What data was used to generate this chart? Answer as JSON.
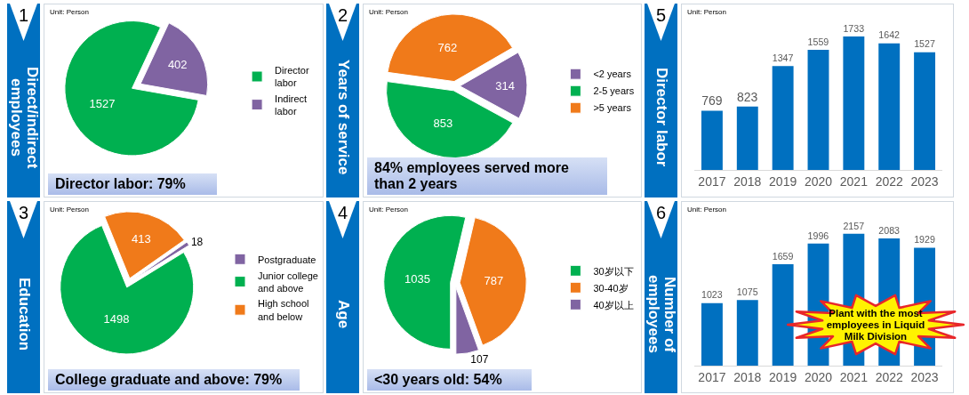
{
  "chart_data": [
    {
      "type": "pie",
      "title": "Direct/indirect employees",
      "annotations": [
        "1",
        "Unit: Person",
        "Director labor: 79%"
      ],
      "categories": [
        "Director labor",
        "Indirect labor"
      ],
      "values": [
        1527,
        402
      ],
      "colors": [
        "#00b050",
        "#8064a2"
      ],
      "data_labels": true,
      "legend": "right"
    },
    {
      "type": "pie",
      "title": "Years of service",
      "annotations": [
        "2",
        "Unit: Person",
        "84% employees served more than 2 years"
      ],
      "categories": [
        "<2 years",
        "2-5 years",
        ">5 years"
      ],
      "values": [
        314,
        853,
        762
      ],
      "colors": [
        "#8064a2",
        "#00b050",
        "#f07a1a"
      ],
      "data_labels": true,
      "legend": "right"
    },
    {
      "type": "bar",
      "title": "Director labor",
      "annotations": [
        "5",
        "Unit: Person"
      ],
      "categories": [
        "2017",
        "2018",
        "2019",
        "2020",
        "2021",
        "2022",
        "2023"
      ],
      "values": [
        769,
        823,
        1347,
        1559,
        1733,
        1642,
        1527
      ],
      "color": "#0070c0",
      "tick_labels": "x",
      "data_labels": true,
      "grid": false,
      "legend": false
    },
    {
      "type": "pie",
      "title": "Education",
      "annotations": [
        "3",
        "Unit: Person",
        "College graduate and above: 79%"
      ],
      "categories": [
        "Postgraduate",
        "Junior college and above",
        "High school and below"
      ],
      "values": [
        18,
        1498,
        413
      ],
      "colors": [
        "#8064a2",
        "#00b050",
        "#f07a1a"
      ],
      "data_labels": true,
      "legend": "right"
    },
    {
      "type": "pie",
      "title": "Age",
      "annotations": [
        "4",
        "Unit: Person",
        "<30 years old: 54%"
      ],
      "categories": [
        "30岁以下",
        "30-40岁",
        "40岁以上"
      ],
      "values": [
        1035,
        787,
        107
      ],
      "colors": [
        "#00b050",
        "#f07a1a",
        "#8064a2"
      ],
      "data_labels": true,
      "legend": "right"
    },
    {
      "type": "bar",
      "title": "Number of employees",
      "annotations": [
        "6",
        "Unit: Person",
        "Plant with the most employees in Liquid Milk Division"
      ],
      "categories": [
        "2017",
        "2018",
        "2019",
        "2020",
        "2021",
        "2022",
        "2023"
      ],
      "values": [
        1023,
        1075,
        1659,
        1996,
        2157,
        2083,
        1929
      ],
      "color": "#0070c0",
      "tick_labels": "x",
      "data_labels": true,
      "grid": false,
      "legend": false
    }
  ]
}
